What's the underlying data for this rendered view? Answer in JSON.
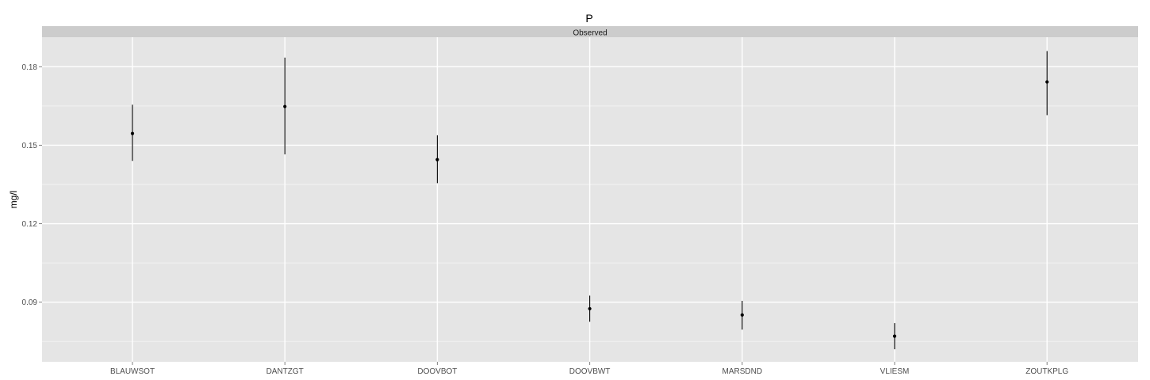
{
  "chart_data": {
    "type": "scatter",
    "title": "P",
    "facet_label": "Observed",
    "xlabel": "",
    "ylabel": "mg/l",
    "categories": [
      "BLAUWSOT",
      "DANTZGT",
      "DOOVBOT",
      "DOOVBWT",
      "MARSDND",
      "VLIESM",
      "ZOUTKPLG"
    ],
    "values": [
      0.1545,
      0.1648,
      0.1445,
      0.0875,
      0.0851,
      0.077,
      0.1742
    ],
    "error_low": [
      0.144,
      0.1465,
      0.1355,
      0.0825,
      0.0795,
      0.072,
      0.1615
    ],
    "error_high": [
      0.1655,
      0.1835,
      0.1538,
      0.0925,
      0.0905,
      0.082,
      0.186
    ],
    "yticks": [
      0.09,
      0.12,
      0.15,
      0.18
    ],
    "ytick_labels": [
      "0.09",
      "0.12",
      "0.15",
      "0.18"
    ],
    "ylim": [
      0.0672,
      0.1913
    ],
    "grid": true,
    "colors": {
      "panel_background": "#e5e5e5",
      "strip_background": "#cccccc",
      "grid_major": "#ffffff",
      "grid_minor": "#f2f2f2",
      "point": "#000000"
    }
  }
}
